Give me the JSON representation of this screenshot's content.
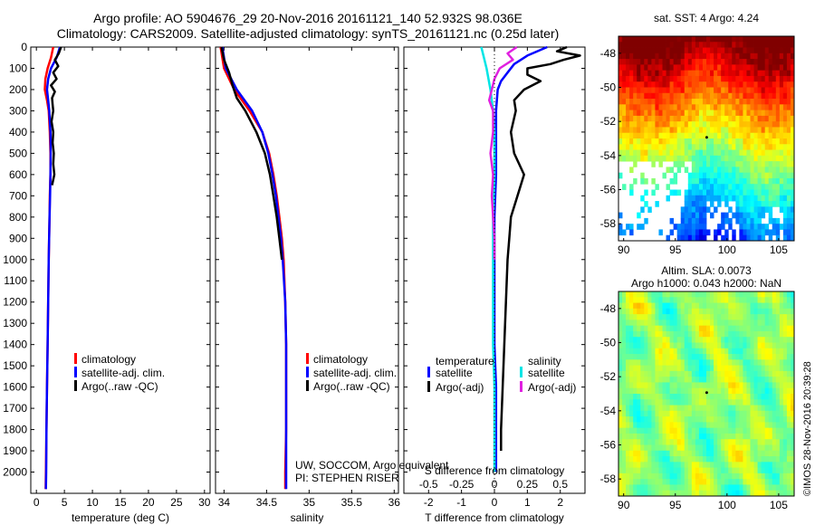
{
  "header": {
    "title_line1": "Argo profile: AO 5904676_29 20-Nov-2016 20161121_140 52.932S 98.036E",
    "title_line2": "Climatology: CARS2009. Satellite-adjusted climatology: synTS_20161121.nc (0.25d later)"
  },
  "credits": {
    "line1": "UW, SOCCOM, Argo equivalent",
    "line2": "PI: STEPHEN RISER"
  },
  "stamp": "©IMOS 28-Nov-2016 20:39:28",
  "colors": {
    "climatology": "#ff0000",
    "satellite": "#0000ff",
    "argo": "#000000",
    "sal_satellite": "#00e5e5",
    "sal_argo": "#e020e0"
  },
  "chart_data": [
    {
      "type": "line",
      "panel": "temperature",
      "xlabel": "temperature (deg C)",
      "ylabel": "",
      "xlim": [
        -1,
        31
      ],
      "ylim": [
        2100,
        0
      ],
      "xticks": [
        "0",
        "5",
        "10",
        "15",
        "20",
        "25",
        "30"
      ],
      "yticks": [
        "0",
        "100",
        "200",
        "300",
        "400",
        "500",
        "600",
        "700",
        "800",
        "900",
        "1000",
        "1100",
        "1200",
        "1300",
        "1400",
        "1500",
        "1600",
        "1700",
        "1800",
        "1900",
        "2000"
      ],
      "legend": [
        "climatology",
        "satellite-adj. clim.",
        "Argo(..raw -QC)"
      ],
      "series": [
        {
          "name": "climatology",
          "color": "#ff0000",
          "depth": [
            0,
            50,
            100,
            150,
            200,
            250,
            300,
            400,
            500,
            600,
            700,
            800,
            1000,
            1200,
            1400,
            1600,
            1800,
            2000,
            2080
          ],
          "x": [
            3.0,
            2.6,
            2.0,
            1.6,
            1.5,
            1.9,
            2.2,
            2.4,
            2.5,
            2.5,
            2.4,
            2.35,
            2.2,
            2.1,
            2.0,
            1.9,
            1.8,
            1.7,
            1.65
          ]
        },
        {
          "name": "satellite-adj. clim.",
          "color": "#0000ff",
          "depth": [
            0,
            50,
            100,
            150,
            200,
            250,
            300,
            400,
            500,
            600,
            700,
            800,
            1000,
            1200,
            1400,
            1600,
            1800,
            2000,
            2080
          ],
          "x": [
            4.2,
            3.6,
            2.6,
            2.1,
            1.9,
            2.1,
            2.3,
            2.5,
            2.55,
            2.5,
            2.45,
            2.35,
            2.2,
            2.1,
            2.0,
            1.9,
            1.8,
            1.75,
            1.7
          ]
        },
        {
          "name": "Argo(..raw -QC)",
          "color": "#000000",
          "depth": [
            0,
            30,
            60,
            90,
            120,
            150,
            180,
            210,
            240,
            270,
            300,
            350,
            400,
            450,
            500,
            550,
            600,
            650
          ],
          "x": [
            4.4,
            4.0,
            3.3,
            3.9,
            3.0,
            3.6,
            2.6,
            3.3,
            2.8,
            2.9,
            3.0,
            2.7,
            3.0,
            2.9,
            3.1,
            3.0,
            3.2,
            2.8
          ]
        }
      ]
    },
    {
      "type": "line",
      "panel": "salinity",
      "xlabel": "salinity",
      "ylabel": "",
      "xlim": [
        33.9,
        36.05
      ],
      "ylim": [
        2100,
        0
      ],
      "xticks": [
        "34",
        "34.5",
        "35",
        "35.5",
        "36"
      ],
      "legend": [
        "climatology",
        "satellite-adj. clim.",
        "Argo(..raw -QC)"
      ],
      "series": [
        {
          "name": "climatology",
          "color": "#ff0000",
          "depth": [
            0,
            100,
            200,
            300,
            400,
            500,
            600,
            700,
            800,
            900,
            1000,
            1200,
            1400,
            1600,
            1800,
            2000,
            2080
          ],
          "x": [
            33.96,
            34.0,
            34.12,
            34.3,
            34.45,
            34.53,
            34.58,
            34.62,
            34.65,
            34.68,
            34.7,
            34.72,
            34.73,
            34.73,
            34.73,
            34.72,
            34.72
          ]
        },
        {
          "name": "satellite-adj. clim.",
          "color": "#0000ff",
          "depth": [
            0,
            100,
            200,
            300,
            400,
            500,
            600,
            700,
            800,
            900,
            1000,
            1200,
            1400,
            1600,
            1800,
            2000,
            2080
          ],
          "x": [
            33.98,
            34.02,
            34.15,
            34.33,
            34.45,
            34.52,
            34.57,
            34.61,
            34.64,
            34.67,
            34.69,
            34.72,
            34.73,
            34.73,
            34.73,
            34.73,
            34.73
          ]
        },
        {
          "name": "Argo(..raw -QC)",
          "color": "#000000",
          "depth": [
            0,
            60,
            120,
            180,
            240,
            300,
            400,
            500,
            600,
            700,
            800,
            900,
            1000
          ],
          "x": [
            33.97,
            34.0,
            34.06,
            34.1,
            34.15,
            34.25,
            34.38,
            34.48,
            34.54,
            34.58,
            34.62,
            34.65,
            34.68
          ]
        }
      ]
    },
    {
      "type": "line",
      "panel": "difference",
      "xlabel": "T difference from climatology",
      "xlabel_top": "S difference from climatology",
      "ylabel": "",
      "xlim": [
        -2.75,
        2.75
      ],
      "ylim": [
        2100,
        0
      ],
      "xticks": [
        "-2",
        "-1",
        "0",
        "1",
        "2"
      ],
      "xticks_top": [
        "-0.5",
        "-0.25",
        "0",
        "0.25",
        "0.5"
      ],
      "legend_groups": [
        {
          "title": "temperature",
          "items": [
            "satellite",
            "Argo(-adj)"
          ]
        },
        {
          "title": "salinity",
          "items": [
            "satellite",
            "Argo(-adj)"
          ]
        }
      ],
      "series": [
        {
          "name": "satellite",
          "group": "temperature",
          "color": "#0000ff",
          "depth": [
            0,
            40,
            80,
            120,
            160,
            200,
            300,
            400,
            600,
            800,
            1000,
            1200,
            1400,
            1600,
            1800,
            2000
          ],
          "x": [
            1.6,
            1.0,
            0.6,
            0.4,
            0.2,
            0.1,
            0.05,
            0.05,
            0.05,
            0.0,
            0.0,
            0.0,
            0.0,
            0.05,
            0.05,
            0.05
          ]
        },
        {
          "name": "Argo(-adj)",
          "group": "temperature",
          "color": "#000000",
          "depth": [
            0,
            20,
            40,
            60,
            80,
            100,
            130,
            160,
            200,
            250,
            300,
            400,
            500,
            600,
            700,
            800,
            900,
            1000,
            1200,
            1400,
            1600,
            1800,
            1900
          ],
          "x": [
            2.2,
            1.9,
            2.6,
            2.1,
            1.7,
            1.0,
            1.0,
            1.4,
            0.9,
            0.6,
            0.65,
            0.5,
            0.6,
            0.9,
            0.7,
            0.5,
            0.45,
            0.4,
            0.35,
            0.3,
            0.25,
            0.2,
            0.2
          ]
        },
        {
          "name": "satellite",
          "group": "salinity",
          "color": "#00e5e5",
          "depth": [
            0,
            50,
            100,
            200,
            300,
            400,
            600,
            800,
            1000,
            1200,
            1400,
            1600,
            1800,
            2000
          ],
          "x": [
            -0.1,
            -0.08,
            -0.06,
            -0.03,
            -0.01,
            0.0,
            0.0,
            -0.01,
            -0.01,
            -0.01,
            -0.01,
            0.0,
            0.0,
            0.0
          ]
        },
        {
          "name": "Argo(-adj)",
          "group": "salinity",
          "color": "#e020e0",
          "depth": [
            0,
            30,
            60,
            100,
            150,
            200,
            250,
            300,
            400,
            500,
            600,
            700,
            800,
            900,
            1000
          ],
          "x": [
            0.17,
            0.1,
            0.14,
            0.04,
            0.0,
            -0.02,
            -0.04,
            -0.01,
            -0.01,
            -0.03,
            -0.01,
            -0.02,
            -0.01,
            0.0,
            0.0
          ]
        }
      ]
    },
    {
      "type": "heatmap",
      "panel": "map-sst",
      "title": "sat. SST: 4  Argo: 4.24",
      "xlim": [
        89.5,
        106.5
      ],
      "ylim": [
        -59,
        -47
      ],
      "xticks": [
        "90",
        "95",
        "100",
        "105"
      ],
      "yticks": [
        "-48",
        "-50",
        "-52",
        "-54",
        "-56",
        "-58"
      ],
      "profile_location": {
        "lon": 98.036,
        "lat": -52.932
      }
    },
    {
      "type": "heatmap",
      "panel": "map-sla",
      "title": "Altim. SLA: 0.0073",
      "subtitle": "Argo h1000: 0.043 h2000: NaN",
      "xlim": [
        89.5,
        106.5
      ],
      "ylim": [
        -59,
        -47
      ],
      "xticks": [
        "90",
        "95",
        "100",
        "105"
      ],
      "yticks": [
        "-48",
        "-50",
        "-52",
        "-54",
        "-56",
        "-58"
      ],
      "profile_location": {
        "lon": 98.036,
        "lat": -52.932
      }
    }
  ]
}
